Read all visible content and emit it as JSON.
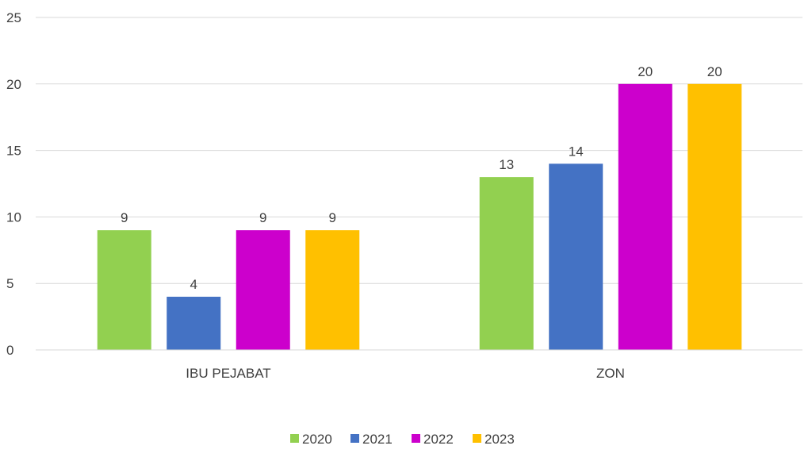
{
  "chart_data": {
    "type": "bar",
    "categories": [
      "IBU PEJABAT",
      "ZON"
    ],
    "series": [
      {
        "name": "2020",
        "color": "#92d050",
        "values": [
          9,
          13
        ]
      },
      {
        "name": "2021",
        "color": "#4472c4",
        "values": [
          4,
          14
        ]
      },
      {
        "name": "2022",
        "color": "#cc00cc",
        "values": [
          9,
          20
        ]
      },
      {
        "name": "2023",
        "color": "#ffc000",
        "values": [
          9,
          20
        ]
      }
    ],
    "yticks": [
      "0",
      "5",
      "10",
      "15",
      "20",
      "25"
    ],
    "ylim": [
      0,
      25
    ],
    "grid": true,
    "legend": "bottom",
    "data_labels": true
  }
}
